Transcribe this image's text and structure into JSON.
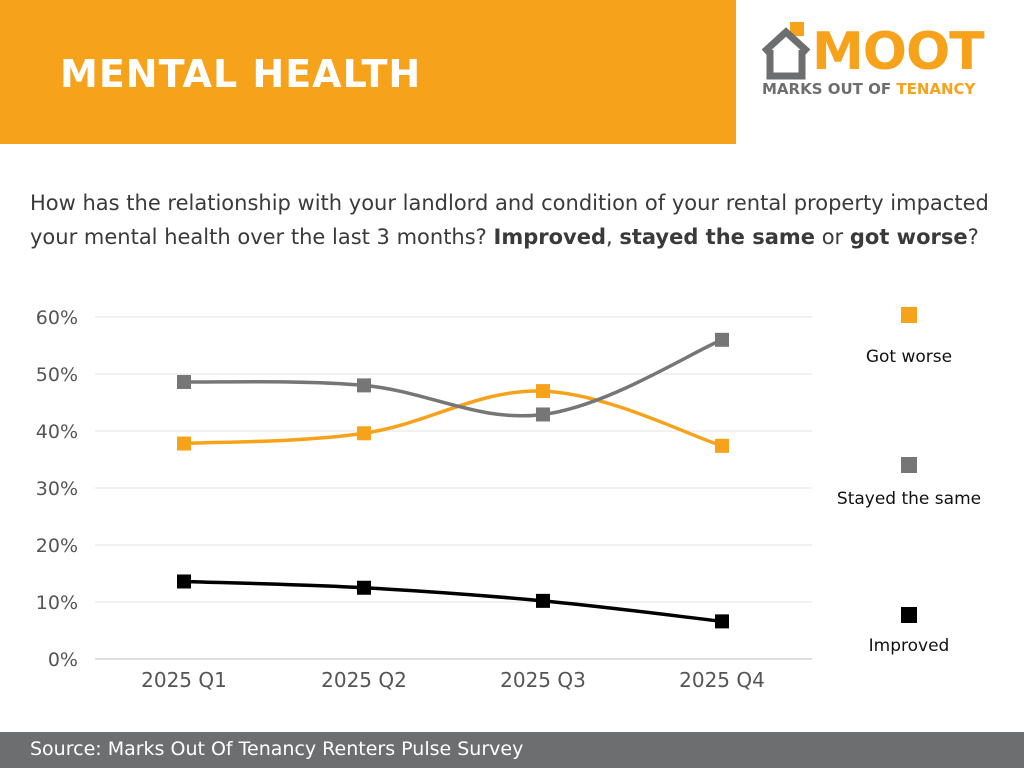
{
  "header": {
    "title": "MENTAL HEALTH",
    "band_color": "#f7a21b"
  },
  "logo": {
    "icon": "house-icon",
    "wordmark": "MOOT",
    "tagline_part1": "MARKS OUT OF ",
    "tagline_part2": "TENANCY",
    "accent_color": "#f7a21b",
    "grey_color": "#6d6e70"
  },
  "question": {
    "text_start": "How has the relationship with your landlord and condition of your rental property impacted your mental health over the last 3 months? ",
    "improved": "Improved",
    "sep1": ", ",
    "same": "stayed the same",
    "sep2": " or ",
    "worse": "got worse",
    "end": "?"
  },
  "chart_data": {
    "type": "line",
    "title": "",
    "xlabel": "",
    "ylabel": "",
    "categories": [
      "2025 Q1",
      "2025 Q2",
      "2025 Q3",
      "2025 Q4"
    ],
    "ylim": [
      0,
      60
    ],
    "yticks": [
      0,
      10,
      20,
      30,
      40,
      50,
      60
    ],
    "ytick_labels": [
      "0%",
      "10%",
      "20%",
      "30%",
      "40%",
      "50%",
      "60%"
    ],
    "grid": true,
    "legend_position": "right",
    "series": [
      {
        "name": "Got worse",
        "color": "#f7a21b",
        "values": [
          37.8,
          39.6,
          47.0,
          37.4
        ]
      },
      {
        "name": "Stayed the same",
        "color": "#767676",
        "values": [
          48.6,
          48.0,
          42.9,
          56.0
        ]
      },
      {
        "name": "Improved",
        "color": "#000000",
        "values": [
          13.6,
          12.5,
          10.2,
          6.6
        ]
      }
    ]
  },
  "footer": {
    "source": "Source: Marks Out Of Tenancy Renters Pulse Survey"
  }
}
